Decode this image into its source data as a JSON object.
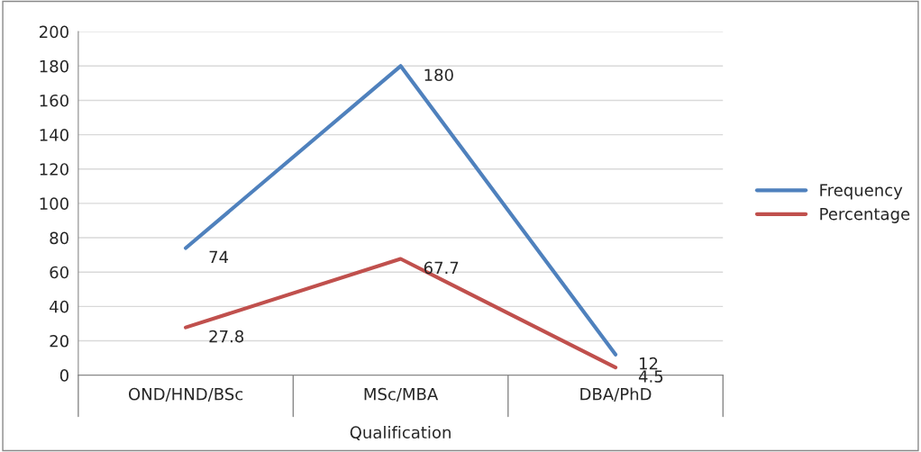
{
  "chart_data": {
    "type": "line",
    "xlabel": "Qualification",
    "categories": [
      "OND/HND/BSc",
      "MSc/MBA",
      "DBA/PhD"
    ],
    "series": [
      {
        "name": "Frequency",
        "color": "#4f81bd",
        "values": [
          74,
          180,
          12
        ]
      },
      {
        "name": "Percentage",
        "color": "#c0504d",
        "values": [
          27.8,
          67.7,
          4.5
        ]
      }
    ],
    "ylim": [
      0,
      200
    ],
    "yticks": [
      0,
      20,
      40,
      60,
      80,
      100,
      120,
      140,
      160,
      180,
      200
    ],
    "grid": "y",
    "legend": "right",
    "data_labels": true,
    "marker": "none",
    "line_style": "solid"
  }
}
